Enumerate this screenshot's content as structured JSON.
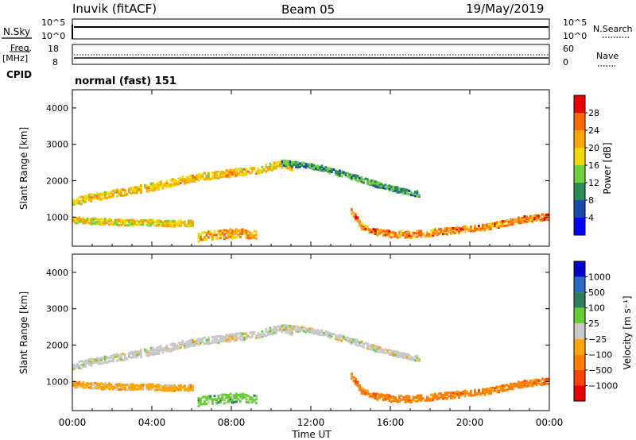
{
  "header": {
    "station": "Inuvik (fitACF)",
    "beam": "Beam 05",
    "date": "19/May/2019"
  },
  "status_panels": {
    "nsky": {
      "label": "N.Sky",
      "left_ticks": [
        "10^5",
        "10^0"
      ],
      "right_ticks": [
        "10^5",
        "10^0"
      ],
      "right_label": "N.Search"
    },
    "freq": {
      "label_line1": "Freq.",
      "label_line2": "[MHz]",
      "left_ticks": [
        "18",
        "8"
      ],
      "right_ticks": [
        "60",
        "0"
      ],
      "right_label": "Nave"
    },
    "cpid": {
      "label": "CPID",
      "value": "normal (fast) 151"
    }
  },
  "colors": {
    "power": [
      "#0000ff",
      "#1a4aa8",
      "#2e8b57",
      "#6fcf3f",
      "#f0d800",
      "#ffa500",
      "#ff6a00",
      "#e60000"
    ],
    "velocity": [
      "#0000cc",
      "#2a6ac0",
      "#2e7d5b",
      "#66cc33",
      "#c8c8c8",
      "#ffa500",
      "#ff7f00",
      "#ff4500",
      "#e60000"
    ]
  },
  "chart_data": [
    {
      "type": "heatmap",
      "name": "power",
      "xlabel": "",
      "ylabel": "Slant Range [km]",
      "x_ticks": [
        "00:00",
        "04:00",
        "08:00",
        "12:00",
        "16:00",
        "20:00",
        "00:00"
      ],
      "xlim_hours": [
        0,
        24
      ],
      "ylim": [
        200,
        4500
      ],
      "y_ticks": [
        1000,
        2000,
        3000,
        4000
      ],
      "colorbar": {
        "label": "Power [dB]",
        "ticks": [
          "4",
          "8",
          "12",
          "16",
          "20",
          "24",
          "28"
        ],
        "range": [
          0,
          32
        ]
      },
      "echo_bands": [
        {
          "t": [
            0.0,
            0.5,
            1.5,
            2.5,
            3.5,
            4.5,
            5.5,
            6.5,
            7.5,
            8.5,
            9.5,
            10.5,
            11.0
          ],
          "range_km": [
            1420,
            1520,
            1620,
            1720,
            1820,
            1920,
            2050,
            2140,
            2220,
            2280,
            2350,
            2500,
            2420
          ],
          "width_km": 210,
          "level": 20
        },
        {
          "t": [
            10.5,
            11.5,
            12.5,
            13.0,
            13.5,
            14.0,
            14.5,
            15.0,
            15.5,
            16.0,
            16.5,
            17.5
          ],
          "range_km": [
            2520,
            2460,
            2380,
            2300,
            2230,
            2150,
            2070,
            1980,
            1900,
            1830,
            1760,
            1650
          ],
          "width_km": 150,
          "level": 11
        },
        {
          "t": [
            0.0,
            1.0,
            2.0,
            3.0,
            4.0,
            5.0,
            6.0
          ],
          "range_km": [
            950,
            920,
            900,
            890,
            880,
            860,
            860
          ],
          "width_km": 170,
          "level": 19
        },
        {
          "t": [
            14.0,
            14.5,
            15.0,
            16.0,
            17.0,
            18.0,
            19.0,
            20.0,
            21.0,
            22.0,
            23.0,
            24.0
          ],
          "range_km": [
            1200,
            800,
            650,
            570,
            550,
            600,
            660,
            720,
            780,
            900,
            1000,
            1050
          ],
          "width_km": 180,
          "level": 24
        },
        {
          "t": [
            6.3,
            6.8,
            7.5,
            8.5,
            9.2
          ],
          "range_km": [
            480,
            520,
            560,
            600,
            560
          ],
          "width_km": 260,
          "level": 22
        }
      ]
    },
    {
      "type": "heatmap",
      "name": "velocity",
      "xlabel": "Time UT",
      "ylabel": "Slant Range [km]",
      "x_ticks": [
        "00:00",
        "04:00",
        "08:00",
        "12:00",
        "16:00",
        "20:00",
        "00:00"
      ],
      "xlim_hours": [
        0,
        24
      ],
      "ylim": [
        200,
        4500
      ],
      "y_ticks": [
        1000,
        2000,
        3000,
        4000
      ],
      "colorbar": {
        "label": "Velocity [m s⁻¹]",
        "ticks": [
          "1000",
          "500",
          "100",
          "25",
          "−25",
          "−100",
          "−500",
          "−1000"
        ]
      },
      "echo_bands": [
        {
          "t": [
            0.0,
            0.5,
            1.5,
            2.5,
            3.5,
            4.5,
            5.5,
            6.5,
            7.5,
            8.5,
            9.5,
            10.5,
            11.0
          ],
          "range_km": [
            1420,
            1520,
            1620,
            1720,
            1820,
            1920,
            2050,
            2140,
            2220,
            2280,
            2350,
            2500,
            2420
          ],
          "width_km": 210,
          "class": "25"
        },
        {
          "t": [
            10.5,
            11.5,
            12.5,
            13.0,
            13.5,
            14.0,
            14.5,
            15.0,
            15.5,
            16.0,
            16.5,
            17.5
          ],
          "range_km": [
            2520,
            2460,
            2380,
            2300,
            2230,
            2150,
            2070,
            1980,
            1900,
            1830,
            1760,
            1650
          ],
          "width_km": 150,
          "class": "25"
        },
        {
          "t": [
            0.0,
            1.0,
            2.0,
            3.0,
            4.0,
            5.0,
            6.0
          ],
          "range_km": [
            950,
            920,
            900,
            890,
            880,
            860,
            860
          ],
          "width_km": 170,
          "class": "−100"
        },
        {
          "t": [
            14.0,
            14.5,
            15.0,
            16.0,
            17.0,
            18.0,
            19.0,
            20.0,
            21.0,
            22.0,
            23.0,
            24.0
          ],
          "range_km": [
            1200,
            800,
            650,
            570,
            550,
            600,
            660,
            720,
            780,
            900,
            1000,
            1050
          ],
          "width_km": 180,
          "class": "−500"
        },
        {
          "t": [
            6.3,
            6.8,
            7.5,
            8.5,
            9.2
          ],
          "range_km": [
            480,
            520,
            560,
            600,
            560
          ],
          "width_km": 260,
          "class": "100"
        }
      ]
    }
  ]
}
